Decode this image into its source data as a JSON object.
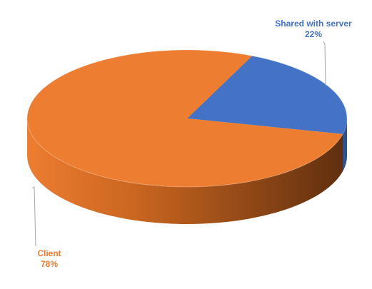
{
  "chart_data": {
    "type": "pie",
    "style": "3d",
    "start_angle_deg": 66,
    "slices": [
      {
        "label": "Shared with server",
        "percent_label": "22%",
        "value": 22,
        "color": "#4472C4",
        "side_dark": "#2F528F"
      },
      {
        "label": "Client",
        "percent_label": "78%",
        "value": 78,
        "color": "#ED7D31",
        "side_dark": "#5E2E0F"
      }
    ],
    "legend": "none",
    "data_labels": "outside with leader lines"
  }
}
